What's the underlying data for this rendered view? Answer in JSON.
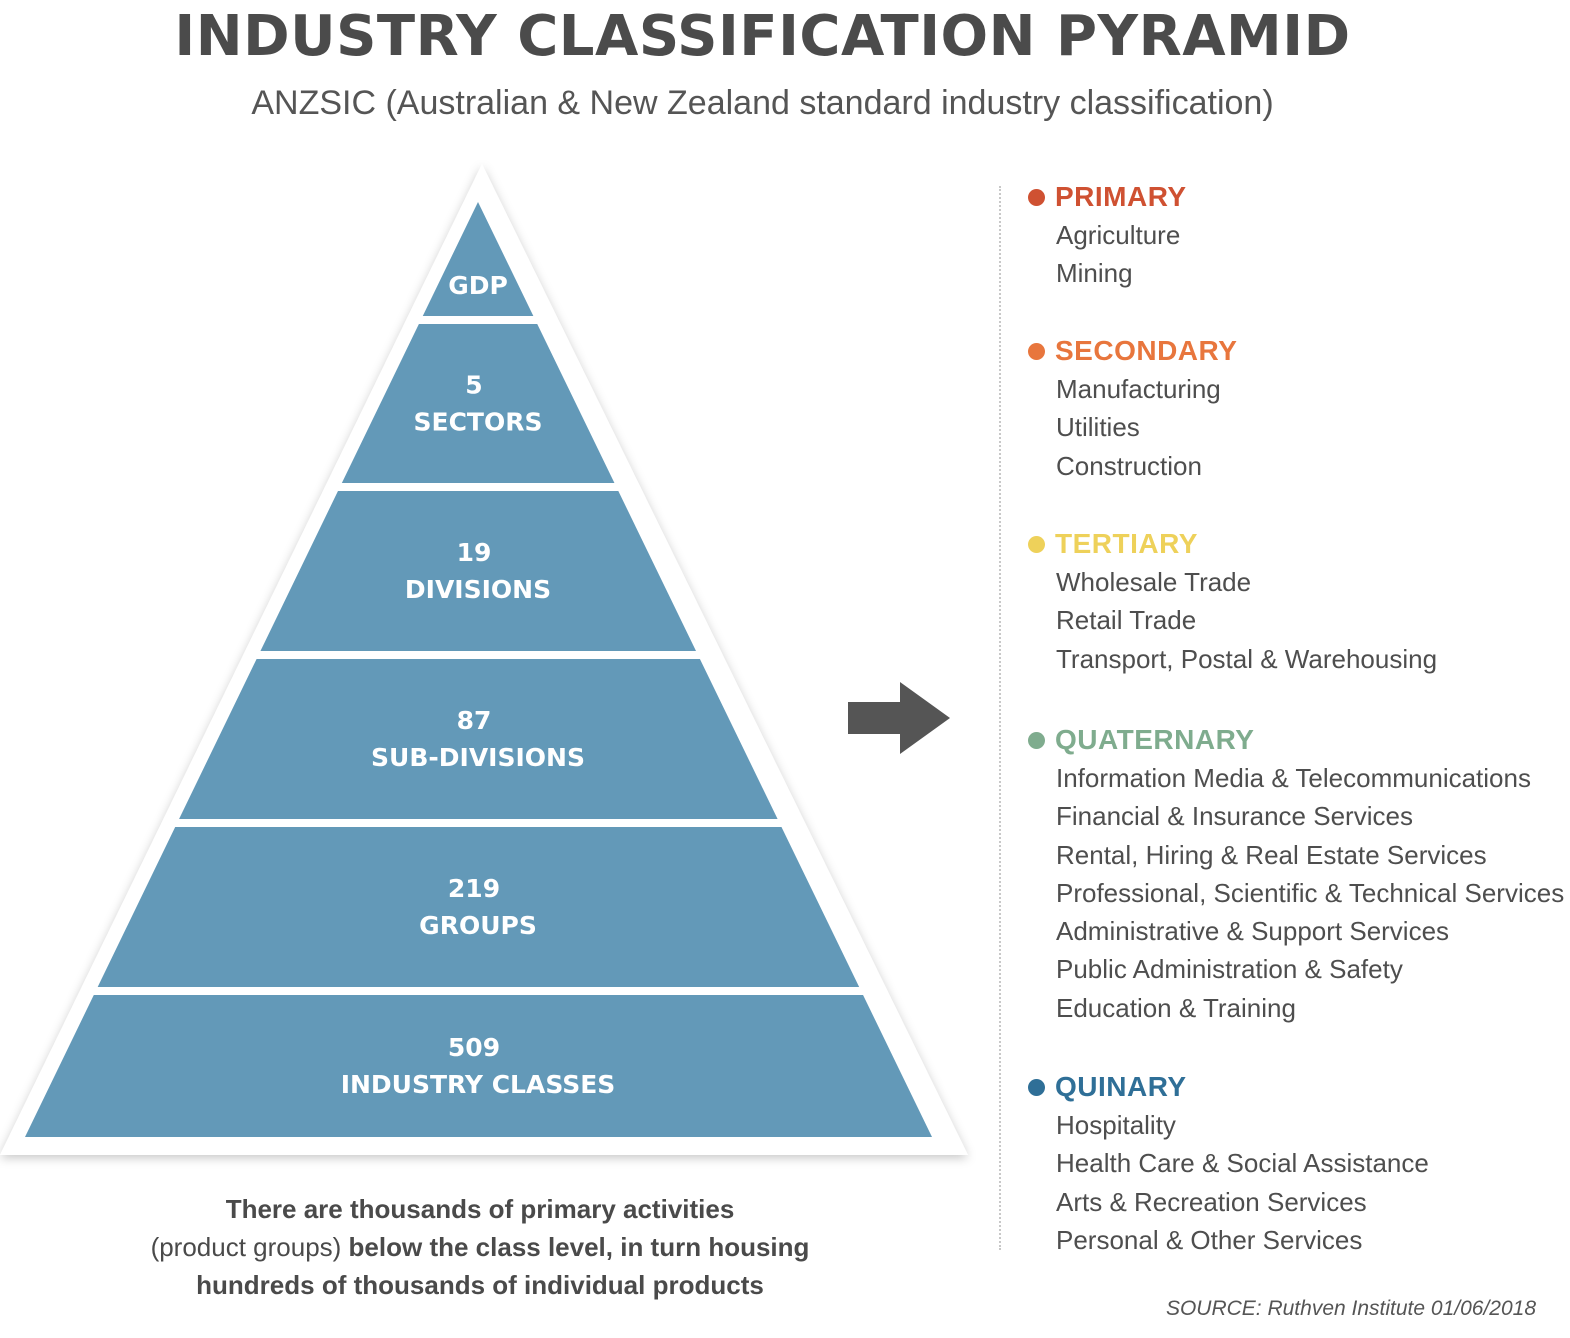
{
  "header": {
    "title": "INDUSTRY CLASSIFICATION PYRAMID",
    "subtitle": "ANZSIC (Australian & New Zealand standard industry classification)"
  },
  "pyramid": {
    "color": "#6399b8",
    "tiers": [
      {
        "number": "",
        "label": "GDP"
      },
      {
        "number": "5",
        "label": "SECTORS"
      },
      {
        "number": "19",
        "label": "DIVISIONS"
      },
      {
        "number": "87",
        "label": "SUB-DIVISIONS"
      },
      {
        "number": "219",
        "label": "GROUPS"
      },
      {
        "number": "509",
        "label": "INDUSTRY CLASSES"
      }
    ]
  },
  "footnote": {
    "line1": "There are thousands of primary activities",
    "line2_light": "(product groups)",
    "line2_bold": " below the class level, in turn housing",
    "line3": "hundreds of thousands of individual products"
  },
  "arrow": {
    "icon": "right-arrow-icon",
    "color": "#555555"
  },
  "sectors": [
    {
      "title": "PRIMARY",
      "color": "#cf5132",
      "items": [
        "Agriculture",
        "Mining"
      ]
    },
    {
      "title": "SECONDARY",
      "color": "#e8763d",
      "items": [
        "Manufacturing",
        "Utilities",
        "Construction"
      ]
    },
    {
      "title": "TERTIARY",
      "color": "#eed15a",
      "items": [
        "Wholesale Trade",
        "Retail Trade",
        "Transport, Postal & Warehousing"
      ]
    },
    {
      "title": "QUATERNARY",
      "color": "#7fac8e",
      "items": [
        "Information Media & Telecommunications",
        "Financial & Insurance Services",
        "Rental, Hiring & Real Estate Services",
        "Professional, Scientific & Technical Services",
        "Administrative & Support Services",
        "Public Administration & Safety",
        "Education & Training"
      ]
    },
    {
      "title": "QUINARY",
      "color": "#2f6f97",
      "items": [
        "Hospitality",
        "Health Care & Social Assistance",
        "Arts & Recreation Services",
        "Personal & Other Services"
      ]
    }
  ],
  "source": "SOURCE: Ruthven Institute 01/06/2018"
}
